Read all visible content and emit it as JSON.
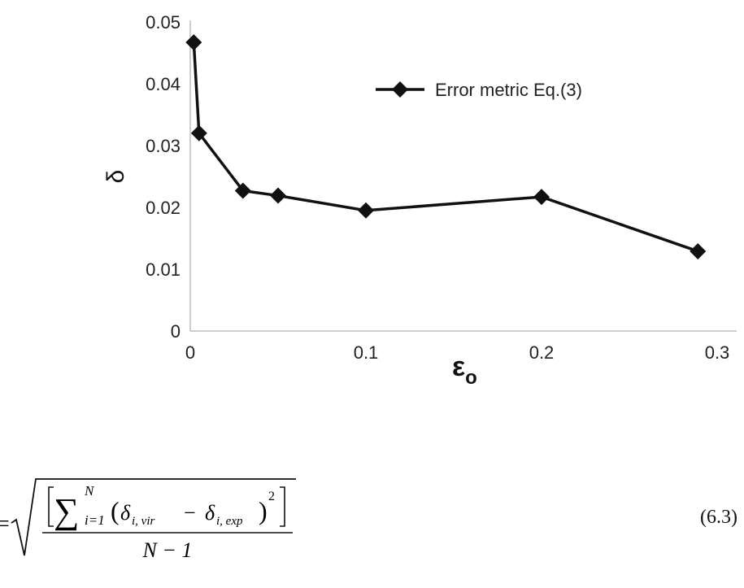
{
  "chart_data": {
    "type": "line",
    "xlabel": "ε",
    "xlabel_sub": "o",
    "ylabel": "δ",
    "xlim": [
      0,
      0.3
    ],
    "ylim": [
      0,
      0.05
    ],
    "x_ticks": [
      "0",
      "0.1",
      "0.2",
      "0.3"
    ],
    "y_ticks": [
      "0",
      "0.01",
      "0.02",
      "0.03",
      "0.04",
      "0.05"
    ],
    "grid": false,
    "legend_position": "top-right",
    "series": [
      {
        "name": "Error metric Eq.(3)",
        "color": "#111111",
        "marker": "diamond",
        "x": [
          0.002,
          0.005,
          0.03,
          0.05,
          0.1,
          0.2,
          0.289
        ],
        "y": [
          0.0467,
          0.032,
          0.0227,
          0.0219,
          0.0195,
          0.0217,
          0.0129
        ]
      }
    ]
  },
  "equation": {
    "lhs": "=",
    "sum_upper": "N",
    "sum_lower": "i=1",
    "term_a": "δ",
    "term_a_sub": "i, vir",
    "minus": "−",
    "term_b": "δ",
    "term_b_sub": "i, exp",
    "power": "2",
    "denominator": "N − 1",
    "number": "(6.3)"
  }
}
